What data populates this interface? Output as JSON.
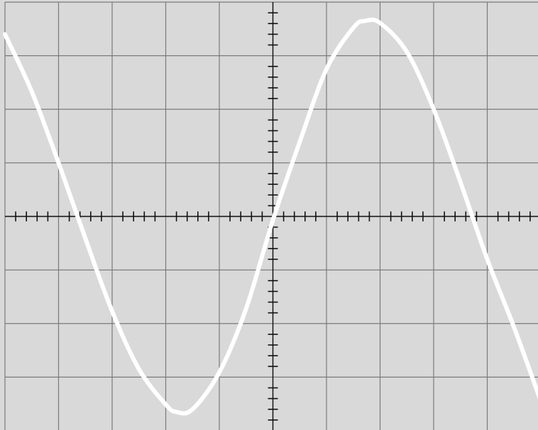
{
  "chart_data": {
    "type": "line",
    "title": "",
    "xlabel": "",
    "ylabel": "",
    "grid": true,
    "xlim": [
      -5,
      5
    ],
    "ylim": [
      -4,
      4
    ],
    "x_divisions": 10,
    "y_divisions": 8,
    "minor_ticks_per_division": 5,
    "series": [
      {
        "values": [
          [
            -5.0,
            3.4
          ],
          [
            -4.5,
            2.33
          ],
          [
            -4.0,
            1.0
          ],
          [
            -3.5,
            -0.41
          ],
          [
            -3.0,
            -1.77
          ],
          [
            -2.5,
            -2.85
          ],
          [
            -2.0,
            -3.51
          ],
          [
            -1.8,
            -3.65
          ],
          [
            -1.5,
            -3.6
          ],
          [
            -1.0,
            -2.91
          ],
          [
            -0.5,
            -1.72
          ],
          [
            0.0,
            -0.07
          ],
          [
            0.5,
            1.39
          ],
          [
            1.0,
            2.75
          ],
          [
            1.5,
            3.52
          ],
          [
            1.72,
            3.65
          ],
          [
            2.0,
            3.61
          ],
          [
            2.5,
            3.07
          ],
          [
            3.0,
            2.0
          ],
          [
            3.5,
            0.64
          ],
          [
            4.0,
            -0.8
          ],
          [
            4.5,
            -2.07
          ],
          [
            5.0,
            -3.45
          ]
        ]
      }
    ],
    "colors": {
      "background": "#d9d9d9",
      "grid": "#7a7a7a",
      "axis": "#111111",
      "trace": "#ffffff"
    }
  }
}
